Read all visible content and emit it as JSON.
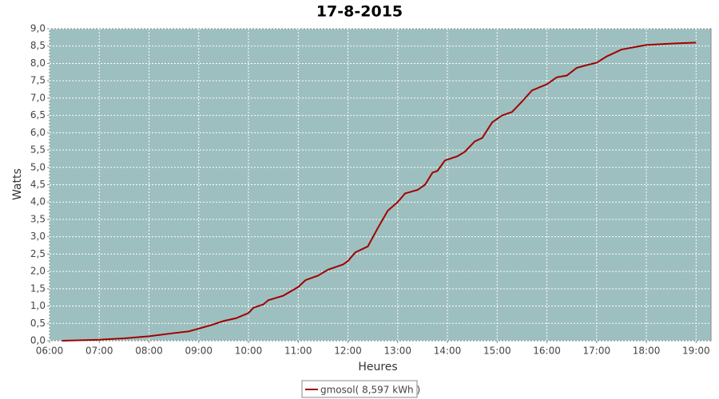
{
  "chart_data": {
    "type": "line",
    "title": "17-8-2015",
    "x_label": "Heures",
    "y_label": "Watts",
    "x": [
      6.25,
      7.0,
      7.5,
      8.0,
      8.5,
      8.8,
      9.0,
      9.25,
      9.5,
      9.75,
      10.0,
      10.1,
      10.3,
      10.4,
      10.7,
      11.0,
      11.15,
      11.4,
      11.6,
      11.9,
      12.0,
      12.15,
      12.4,
      12.6,
      12.8,
      13.0,
      13.15,
      13.4,
      13.55,
      13.7,
      13.8,
      13.95,
      14.2,
      14.35,
      14.55,
      14.7,
      14.9,
      15.1,
      15.3,
      15.5,
      15.7,
      16.0,
      16.2,
      16.4,
      16.6,
      16.8,
      17.0,
      17.2,
      17.5,
      17.8,
      18.0,
      18.5,
      19.0
    ],
    "series": [
      {
        "name": "gmosol( 8,597 kWh )",
        "color": "#a00000",
        "values": [
          0,
          0.03,
          0.07,
          0.13,
          0.22,
          0.27,
          0.35,
          0.45,
          0.57,
          0.65,
          0.8,
          0.95,
          1.05,
          1.17,
          1.3,
          1.55,
          1.75,
          1.88,
          2.05,
          2.2,
          2.3,
          2.55,
          2.72,
          3.25,
          3.75,
          4.0,
          4.25,
          4.35,
          4.5,
          4.85,
          4.9,
          5.2,
          5.32,
          5.45,
          5.75,
          5.85,
          6.3,
          6.5,
          6.6,
          6.9,
          7.22,
          7.4,
          7.6,
          7.65,
          7.87,
          7.95,
          8.02,
          8.2,
          8.4,
          8.48,
          8.53,
          8.57,
          8.6
        ]
      }
    ],
    "xlim": [
      6,
      19.3
    ],
    "ylim": [
      0,
      9
    ],
    "xticks": [
      {
        "value": 6,
        "label": "06:00"
      },
      {
        "value": 7,
        "label": "07:00"
      },
      {
        "value": 8,
        "label": "08:00"
      },
      {
        "value": 9,
        "label": "09:00"
      },
      {
        "value": 10,
        "label": "10:00"
      },
      {
        "value": 11,
        "label": "11:00"
      },
      {
        "value": 12,
        "label": "12:00"
      },
      {
        "value": 13,
        "label": "13:00"
      },
      {
        "value": 14,
        "label": "14:00"
      },
      {
        "value": 15,
        "label": "15:00"
      },
      {
        "value": 16,
        "label": "16:00"
      },
      {
        "value": 17,
        "label": "17:00"
      },
      {
        "value": 18,
        "label": "18:00"
      },
      {
        "value": 19,
        "label": "19:00"
      }
    ],
    "yticks": [
      {
        "value": 0,
        "label": "0,0"
      },
      {
        "value": 0.5,
        "label": "0,5"
      },
      {
        "value": 1,
        "label": "1,0"
      },
      {
        "value": 1.5,
        "label": "1,5"
      },
      {
        "value": 2,
        "label": "2,0"
      },
      {
        "value": 2.5,
        "label": "2,5"
      },
      {
        "value": 3,
        "label": "3,0"
      },
      {
        "value": 3.5,
        "label": "3,5"
      },
      {
        "value": 4,
        "label": "4,0"
      },
      {
        "value": 4.5,
        "label": "4,5"
      },
      {
        "value": 5,
        "label": "5,0"
      },
      {
        "value": 5.5,
        "label": "5,5"
      },
      {
        "value": 6,
        "label": "6,0"
      },
      {
        "value": 6.5,
        "label": "6,5"
      },
      {
        "value": 7,
        "label": "7,0"
      },
      {
        "value": 7.5,
        "label": "7,5"
      },
      {
        "value": 8,
        "label": "8,0"
      },
      {
        "value": 8.5,
        "label": "8,5"
      },
      {
        "value": 9,
        "label": "9,0"
      }
    ],
    "grid": true,
    "plot_background": "#9ebfbf",
    "legend": "bottom"
  }
}
